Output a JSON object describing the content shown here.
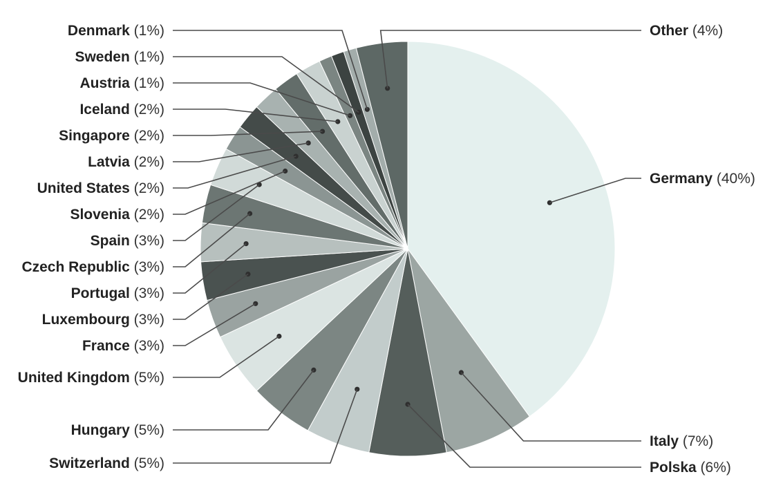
{
  "chart_data": {
    "type": "pie",
    "title": "",
    "start_direction": "top",
    "order": "clockwise",
    "slices": [
      {
        "label": "Germany",
        "value": 40,
        "value_label": "(40%)",
        "color": "#e4f0ee"
      },
      {
        "label": "Italy",
        "value": 7,
        "value_label": "(7%)",
        "color": "#9ca6a3"
      },
      {
        "label": "Polska",
        "value": 6,
        "value_label": "(6%)",
        "color": "#555e5b"
      },
      {
        "label": "Switzerland",
        "value": 5,
        "value_label": "(5%)",
        "color": "#c2cccb"
      },
      {
        "label": "Hungary",
        "value": 5,
        "value_label": "(5%)",
        "color": "#7c8683"
      },
      {
        "label": "United Kingdom",
        "value": 5,
        "value_label": "(5%)",
        "color": "#dbe4e2"
      },
      {
        "label": "France",
        "value": 3,
        "value_label": "(3%)",
        "color": "#9aa3a1"
      },
      {
        "label": "Luxembourg",
        "value": 3,
        "value_label": "(3%)",
        "color": "#4a5250"
      },
      {
        "label": "Portugal",
        "value": 3,
        "value_label": "(3%)",
        "color": "#b7c0be"
      },
      {
        "label": "Czech Republic",
        "value": 3,
        "value_label": "(3%)",
        "color": "#6c7673"
      },
      {
        "label": "Spain",
        "value": 3,
        "value_label": "(3%)",
        "color": "#d1dad8"
      },
      {
        "label": "Slovenia",
        "value": 2,
        "value_label": "(2%)",
        "color": "#8b9593"
      },
      {
        "label": "United States",
        "value": 2,
        "value_label": "(2%)",
        "color": "#444b49"
      },
      {
        "label": "Latvia",
        "value": 2,
        "value_label": "(2%)",
        "color": "#a8b2b0"
      },
      {
        "label": "Singapore",
        "value": 2,
        "value_label": "(2%)",
        "color": "#636d6a"
      },
      {
        "label": "Iceland",
        "value": 2,
        "value_label": "(2%)",
        "color": "#c9d2d0"
      },
      {
        "label": "Austria",
        "value": 1,
        "value_label": "(1%)",
        "color": "#7b8582"
      },
      {
        "label": "Sweden",
        "value": 1,
        "value_label": "(1%)",
        "color": "#3c4341"
      },
      {
        "label": "Denmark",
        "value": 1,
        "value_label": "(1%)",
        "color": "#a3adab"
      },
      {
        "label": "Other",
        "value": 4,
        "value_label": "(4%)",
        "color": "#5d6865"
      }
    ]
  }
}
